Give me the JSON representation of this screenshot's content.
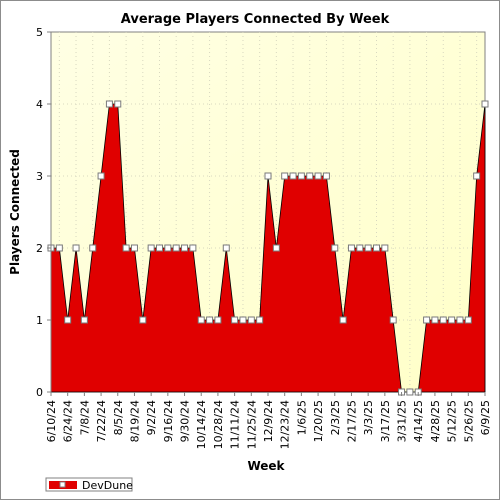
{
  "chart_data": {
    "type": "area",
    "title": "Average Players Connected By Week",
    "xlabel": "Week",
    "ylabel": "Players Connected",
    "ylim": [
      0,
      5
    ],
    "yticks": [
      0,
      1,
      2,
      3,
      4,
      5
    ],
    "x_tick_labels": [
      "6/10/24",
      "6/24/24",
      "7/8/24",
      "7/22/24",
      "8/5/24",
      "8/19/24",
      "9/2/24",
      "9/16/24",
      "9/30/24",
      "10/14/24",
      "10/28/24",
      "11/11/24",
      "11/25/24",
      "12/9/24",
      "12/23/24",
      "1/6/25",
      "1/20/25",
      "2/3/25",
      "2/17/25",
      "3/3/25",
      "3/17/25",
      "3/31/25",
      "4/14/25",
      "4/28/25",
      "5/12/25",
      "5/26/25",
      "6/9/25"
    ],
    "x": [
      "6/10/24",
      "6/17/24",
      "6/24/24",
      "7/1/24",
      "7/8/24",
      "7/15/24",
      "7/22/24",
      "7/29/24",
      "8/5/24",
      "8/12/24",
      "8/19/24",
      "8/26/24",
      "9/2/24",
      "9/9/24",
      "9/16/24",
      "9/23/24",
      "9/30/24",
      "10/7/24",
      "10/14/24",
      "10/21/24",
      "10/28/24",
      "11/4/24",
      "11/11/24",
      "11/18/24",
      "11/25/24",
      "12/2/24",
      "12/9/24",
      "12/16/24",
      "12/23/24",
      "12/30/24",
      "1/6/25",
      "1/13/25",
      "1/20/25",
      "1/27/25",
      "2/3/25",
      "2/10/25",
      "2/17/25",
      "2/24/25",
      "3/3/25",
      "3/10/25",
      "3/17/25",
      "3/24/25",
      "3/31/25",
      "4/7/25",
      "4/14/25",
      "4/21/25",
      "4/28/25",
      "5/5/25",
      "5/12/25",
      "5/19/25",
      "5/26/25",
      "6/2/25",
      "6/9/25"
    ],
    "series": [
      {
        "name": "DevDune",
        "color": "#e00000",
        "values": [
          2,
          2,
          1,
          2,
          1,
          2,
          3,
          4,
          4,
          2,
          2,
          1,
          2,
          2,
          2,
          2,
          2,
          2,
          1,
          1,
          1,
          2,
          1,
          1,
          1,
          1,
          3,
          2,
          3,
          3,
          3,
          3,
          3,
          3,
          2,
          1,
          2,
          2,
          2,
          2,
          2,
          1,
          0,
          0,
          0,
          1,
          1,
          1,
          1,
          1,
          1,
          3,
          4
        ]
      }
    ],
    "grid": true,
    "legend_position": "bottom-left",
    "plot_background": "#ffffdd"
  }
}
